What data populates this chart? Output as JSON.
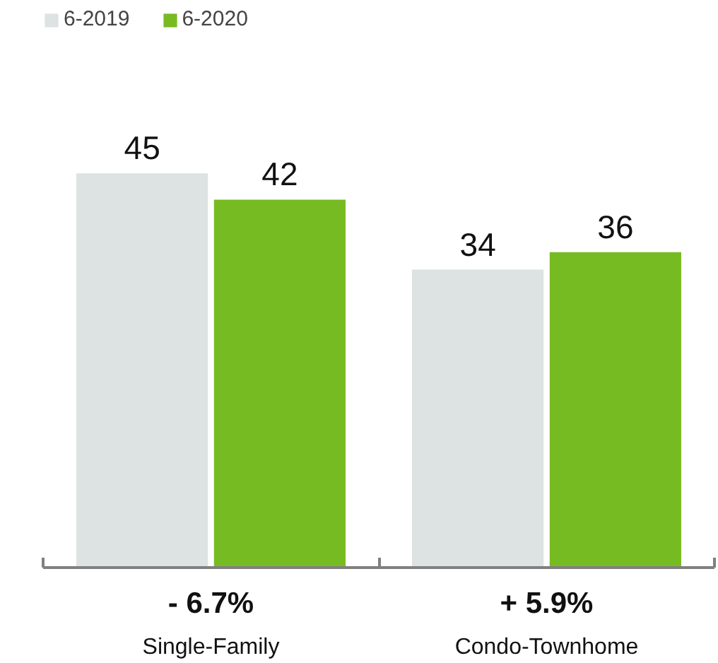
{
  "chart_data": {
    "type": "bar",
    "categories": [
      "Single-Family",
      "Condo-Townhome"
    ],
    "series": [
      {
        "name": "6-2019",
        "color": "#dde2e2",
        "values": [
          45,
          34
        ]
      },
      {
        "name": "6-2020",
        "color": "#77bb22",
        "values": [
          42,
          36
        ]
      }
    ],
    "data_labels": true,
    "legend": "top left",
    "annotations": [
      "- 6.7%",
      "+ 5.9%"
    ]
  }
}
